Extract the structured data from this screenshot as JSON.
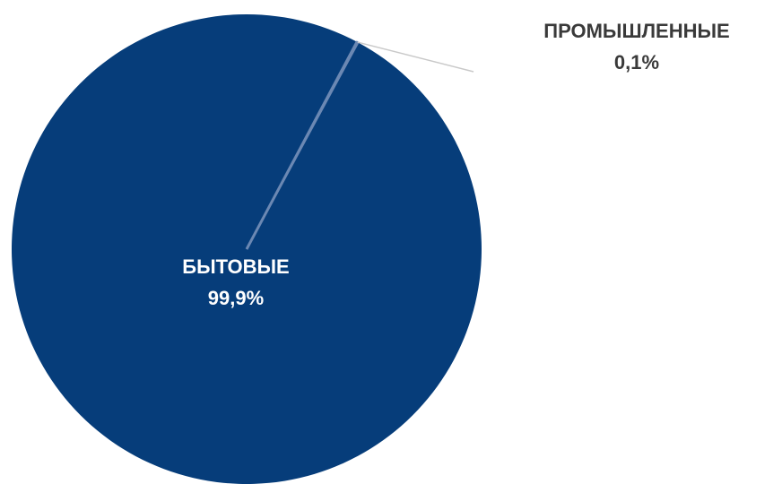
{
  "chart_data": {
    "type": "pie",
    "categories": [
      "БЫТОВЫЕ",
      "ПРОМЫШЛЕННЫЕ"
    ],
    "values": [
      99.9,
      0.1
    ],
    "value_labels": [
      "99,9%",
      "0,1%"
    ],
    "colors": [
      "#063d7a",
      "#6b88b3"
    ],
    "legend": "none"
  }
}
